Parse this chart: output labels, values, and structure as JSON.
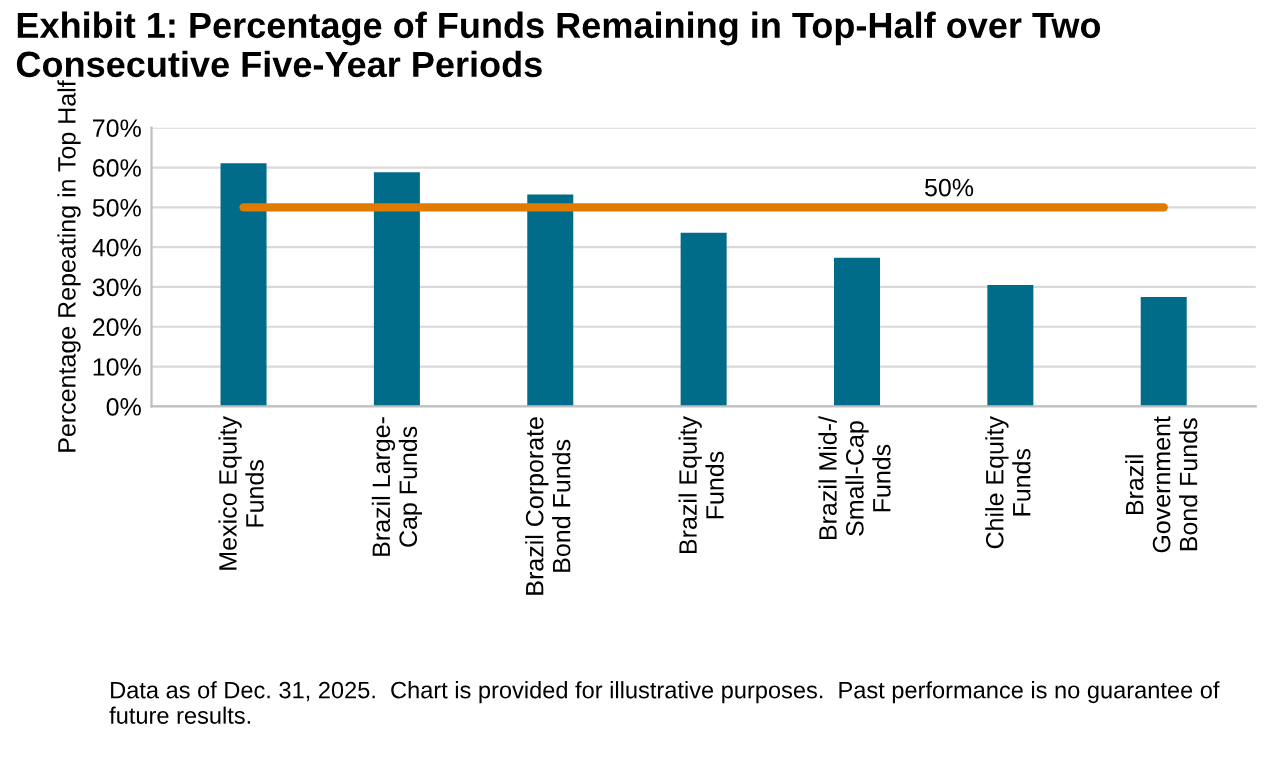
{
  "chart_data": {
    "type": "bar",
    "title": "Exhibit 1: Percentage of Funds Remaining in Top-Half over Two Consecutive Five-Year Periods",
    "ylabel": "Percentage Repeating in Top Half",
    "categories": [
      "Mexico Equity\nFunds",
      "Brazil Large-\nCap Funds",
      "Brazil Corporate\nBond Funds",
      "Brazil Equity\nFunds",
      "Brazil Mid-/\nSmall-Cap\nFunds",
      "Chile Equity\nFunds",
      "Brazil\nGovernment\nBond Funds"
    ],
    "values": [
      61.1,
      58.8,
      53.2,
      43.6,
      37.3,
      30.5,
      27.5
    ],
    "color": "#006c8a",
    "ylim": [
      0,
      70
    ],
    "yticks": [
      {
        "value": 0,
        "label": "0%"
      },
      {
        "value": 10,
        "label": "10%"
      },
      {
        "value": 20,
        "label": "20%"
      },
      {
        "value": 30,
        "label": "30%"
      },
      {
        "value": 40,
        "label": "40%"
      },
      {
        "value": 50,
        "label": "50%"
      },
      {
        "value": 60,
        "label": "60%"
      },
      {
        "value": 70,
        "label": "70%"
      }
    ],
    "grid": "y",
    "ref_lines": [
      {
        "axis": "y",
        "value": 50,
        "label": "50%",
        "color": "#e07b00",
        "line_style": "solid"
      }
    ],
    "annotations": [
      "Data as of Dec. 31, 2025.  Chart is provided for illustrative purposes.  Past performance is no guarantee of future results."
    ]
  }
}
